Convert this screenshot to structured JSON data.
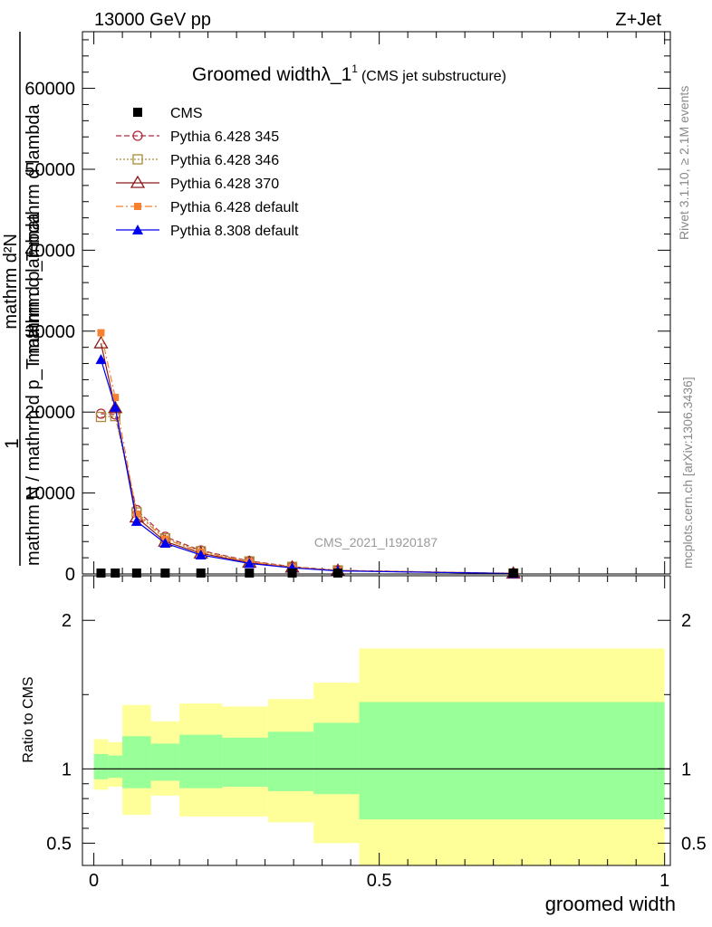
{
  "header": {
    "left": "13000 GeV pp",
    "right": "Z+Jet"
  },
  "title": {
    "main": "Groomed widthλ_1",
    "sup": "1",
    "sub": "(CMS jet substructure)"
  },
  "side_text": {
    "rivet": "Rivet 3.1.10, ≥ 2.1M events",
    "mcplots": "mcplots.cern.ch [arXiv:1306.3436]"
  },
  "watermark": "CMS_2021_I1920187",
  "ylabel": {
    "one": "1",
    "numerator": "mathrm d²N",
    "numerator2": "mathrm d p_T mathrm d lambda",
    "denominator": "mathrm N / mathrm d p_T mathrm d lambda"
  },
  "ratio_label": "Ratio to CMS",
  "xlabel": "groomed width",
  "colors": {
    "cms": "#000000",
    "p345": "#b22a3a",
    "p346": "#a88a3a",
    "p370": "#8b1a1a",
    "p6def": "#f58131",
    "p8def": "#0000ee",
    "band_yellow": "#ffff99",
    "band_green": "#99ff99"
  },
  "chart_data": {
    "type": "line",
    "xlim": [
      -0.02,
      1.01
    ],
    "main_ylim": [
      0,
      67000
    ],
    "main_yticks": [
      0,
      10000,
      20000,
      30000,
      40000,
      50000,
      60000
    ],
    "ratio_ylim": [
      0.35,
      2.3
    ],
    "ratio_yticks": [
      0.5,
      1,
      2
    ],
    "xticks": [
      0,
      0.5,
      1
    ],
    "legend": [
      {
        "key": "cms",
        "label": "CMS"
      },
      {
        "key": "p345",
        "label": "Pythia 6.428 345"
      },
      {
        "key": "p346",
        "label": "Pythia 6.428 346"
      },
      {
        "key": "p370",
        "label": "Pythia 6.428 370"
      },
      {
        "key": "p6def",
        "label": "Pythia 6.428 default"
      },
      {
        "key": "p8def",
        "label": "Pythia 8.308 default"
      }
    ],
    "x": [
      0.0125,
      0.0375,
      0.075,
      0.125,
      0.1875,
      0.2725,
      0.3475,
      0.4275,
      0.735
    ],
    "cms_values": [
      0,
      0,
      0,
      0,
      0,
      0,
      0,
      0,
      0
    ],
    "series": [
      {
        "key": "p345",
        "values": [
          19800,
          19700,
          7900,
          4600,
          2900,
          1600,
          900,
          450,
          60
        ]
      },
      {
        "key": "p346",
        "values": [
          19400,
          19500,
          7600,
          4400,
          2800,
          1550,
          880,
          440,
          60
        ]
      },
      {
        "key": "p370",
        "values": [
          28500,
          20500,
          7000,
          4000,
          2550,
          1400,
          800,
          400,
          55
        ]
      },
      {
        "key": "p6def",
        "values": [
          29800,
          21800,
          7400,
          4300,
          2700,
          1500,
          850,
          420,
          55
        ]
      },
      {
        "key": "p8def",
        "values": [
          26500,
          20600,
          6500,
          3800,
          2350,
          1300,
          750,
          380,
          50
        ]
      }
    ],
    "ratio_bands": [
      {
        "x0": 0.0,
        "x1": 0.025,
        "ylo": 0.86,
        "yhi": 1.2,
        "glo": 0.93,
        "ghi": 1.1
      },
      {
        "x0": 0.025,
        "x1": 0.05,
        "ylo": 0.88,
        "yhi": 1.18,
        "glo": 0.94,
        "ghi": 1.09
      },
      {
        "x0": 0.05,
        "x1": 0.1,
        "ylo": 0.69,
        "yhi": 1.43,
        "glo": 0.87,
        "ghi": 1.22
      },
      {
        "x0": 0.1,
        "x1": 0.15,
        "ylo": 0.82,
        "yhi": 1.32,
        "glo": 0.92,
        "ghi": 1.17
      },
      {
        "x0": 0.15,
        "x1": 0.225,
        "ylo": 0.68,
        "yhi": 1.44,
        "glo": 0.87,
        "ghi": 1.23
      },
      {
        "x0": 0.225,
        "x1": 0.305,
        "ylo": 0.68,
        "yhi": 1.42,
        "glo": 0.88,
        "ghi": 1.21
      },
      {
        "x0": 0.305,
        "x1": 0.385,
        "ylo": 0.64,
        "yhi": 1.47,
        "glo": 0.85,
        "ghi": 1.25
      },
      {
        "x0": 0.385,
        "x1": 0.465,
        "ylo": 0.5,
        "yhi": 1.58,
        "glo": 0.83,
        "ghi": 1.31
      },
      {
        "x0": 0.465,
        "x1": 1.0,
        "ylo": 0.3,
        "yhi": 1.81,
        "glo": 0.66,
        "ghi": 1.45
      }
    ],
    "ratio_reference": 1
  }
}
